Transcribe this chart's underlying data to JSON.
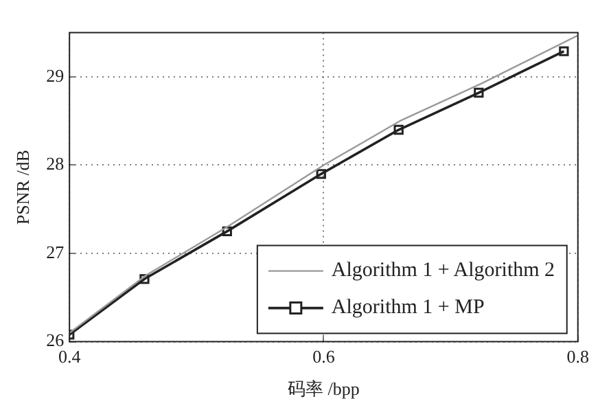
{
  "chart_data": {
    "type": "line",
    "xlabel": "码率 /bpp",
    "ylabel": "PSNR /dB",
    "xlim": [
      0.4,
      0.8
    ],
    "xticks": [
      0.4,
      0.6,
      0.8
    ],
    "ylim": [
      26,
      29.5
    ],
    "yticks": [
      26,
      27,
      28,
      29
    ],
    "grid": true,
    "legend": "bottom right",
    "line_style": "solid",
    "series": [
      {
        "name": "Algorithm 1 + Algorithm 2",
        "color": "#999999",
        "marker": "none",
        "x": [
          0.4,
          0.46,
          0.524,
          0.6,
          0.66,
          0.725,
          0.8
        ],
        "values": [
          26.1,
          26.75,
          27.3,
          28.0,
          28.5,
          28.93,
          29.47
        ]
      },
      {
        "name": "Algorithm 1 + MP",
        "color": "#222222",
        "marker": "square",
        "x": [
          0.4,
          0.459,
          0.524,
          0.598,
          0.659,
          0.722,
          0.789
        ],
        "values": [
          26.08,
          26.71,
          27.25,
          27.9,
          28.4,
          28.82,
          29.29
        ]
      }
    ]
  }
}
